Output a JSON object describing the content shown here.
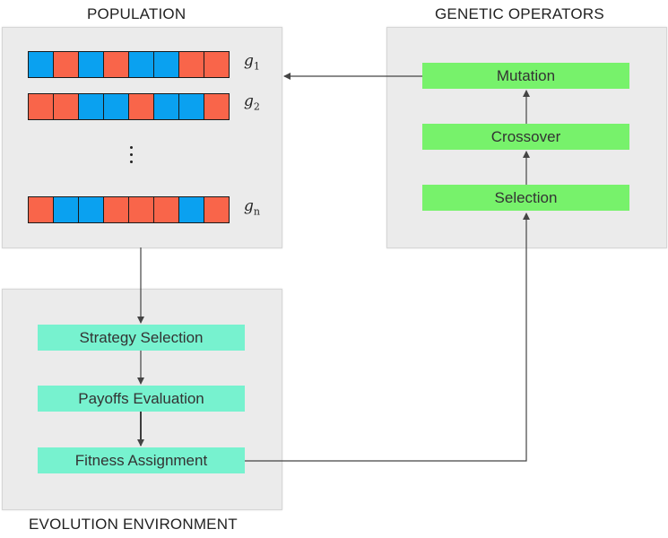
{
  "titles": {
    "population": "POPULATION",
    "genetic_operators": "GENETIC OPERATORS",
    "evolution_environment": "EVOLUTION ENVIRONMENT"
  },
  "population": {
    "chromosomes": [
      {
        "label_base": "g",
        "label_sub": "1",
        "genes": [
          "blue",
          "red",
          "blue",
          "red",
          "blue",
          "blue",
          "red",
          "red"
        ]
      },
      {
        "label_base": "g",
        "label_sub": "2",
        "genes": [
          "red",
          "red",
          "blue",
          "blue",
          "red",
          "blue",
          "blue",
          "red"
        ]
      },
      {
        "label_base": "g",
        "label_sub": "n",
        "genes": [
          "red",
          "blue",
          "blue",
          "red",
          "red",
          "red",
          "blue",
          "red"
        ]
      }
    ],
    "colors": {
      "red": "#f9654a",
      "blue": "#0aa1f0"
    }
  },
  "genetic_operators": {
    "mutation": "Mutation",
    "crossover": "Crossover",
    "selection": "Selection"
  },
  "evolution_environment": {
    "strategy_selection": "Strategy Selection",
    "payoffs_evaluation": "Payoffs Evaluation",
    "fitness_assignment": "Fitness Assignment"
  },
  "colors": {
    "operator_box": "#77f26b",
    "environment_box": "#77f2cf",
    "panel": "#ebebeb",
    "arrow": "#444444"
  }
}
